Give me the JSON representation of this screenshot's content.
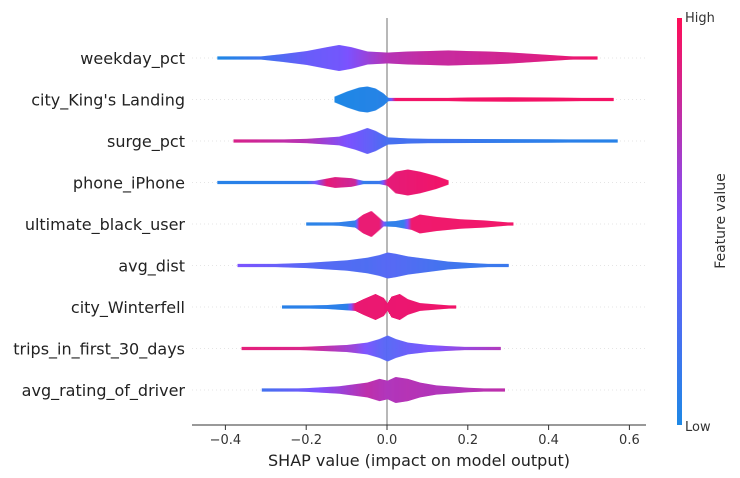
{
  "chart_data": {
    "type": "scatter",
    "style": "shap-violin-summary",
    "title": "",
    "xlabel": "SHAP value (impact on model output)",
    "ylabel": "",
    "xlim": [
      -0.47,
      0.62
    ],
    "xticks": [
      -0.4,
      -0.2,
      0.0,
      0.2,
      0.4,
      0.6
    ],
    "xtick_labels": [
      "−0.4",
      "−0.2",
      "0.0",
      "0.2",
      "0.4",
      "0.6"
    ],
    "grid": "horizontal dotted lines per feature",
    "colorbar": {
      "title": "Feature value",
      "high_label": "High",
      "low_label": "Low",
      "high_color": "#ff0d57",
      "low_color": "#1e88e5"
    },
    "features": [
      {
        "name": "weekday_pct",
        "min": -0.42,
        "max": 0.52,
        "density": [
          [
            -0.42,
            0.3
          ],
          [
            -0.32,
            0.6
          ],
          [
            -0.26,
            1.8
          ],
          [
            -0.2,
            3.2
          ],
          [
            -0.15,
            5
          ],
          [
            -0.12,
            6
          ],
          [
            -0.09,
            5
          ],
          [
            -0.05,
            3
          ],
          [
            0.0,
            2.5
          ],
          [
            0.05,
            3
          ],
          [
            0.1,
            3.2
          ],
          [
            0.15,
            3.5
          ],
          [
            0.2,
            3.2
          ],
          [
            0.25,
            3
          ],
          [
            0.3,
            2.6
          ],
          [
            0.35,
            2
          ],
          [
            0.4,
            1.4
          ],
          [
            0.45,
            0.8
          ],
          [
            0.5,
            0.5
          ],
          [
            0.52,
            0.3
          ]
        ],
        "color_stops": [
          [
            -0.42,
            0.0
          ],
          [
            -0.3,
            0.2
          ],
          [
            -0.2,
            0.4
          ],
          [
            -0.12,
            0.45
          ],
          [
            0.0,
            0.72
          ],
          [
            0.1,
            0.78
          ],
          [
            0.2,
            0.8
          ],
          [
            0.35,
            0.85
          ],
          [
            0.52,
            0.95
          ]
        ]
      },
      {
        "name": "city_King's Landing",
        "min": -0.13,
        "max": 0.56,
        "density": [
          [
            -0.13,
            3
          ],
          [
            -0.1,
            8
          ],
          [
            -0.07,
            12
          ],
          [
            -0.05,
            13
          ],
          [
            -0.03,
            11
          ],
          [
            -0.01,
            6
          ],
          [
            0.0,
            2
          ],
          [
            0.02,
            0
          ],
          [
            0.03,
            1
          ],
          [
            0.06,
            1
          ],
          [
            0.1,
            1.2
          ],
          [
            0.2,
            2
          ],
          [
            0.3,
            2.2
          ],
          [
            0.4,
            2
          ],
          [
            0.5,
            1.5
          ],
          [
            0.56,
            0.8
          ]
        ],
        "color_stops": [
          [
            -0.13,
            0.0
          ],
          [
            0.0,
            0.05
          ],
          [
            0.02,
            0.95
          ],
          [
            0.56,
            0.96
          ]
        ]
      },
      {
        "name": "surge_pct",
        "min": -0.38,
        "max": 0.57,
        "density": [
          [
            -0.38,
            0.3
          ],
          [
            -0.3,
            0.8
          ],
          [
            -0.2,
            1.5
          ],
          [
            -0.12,
            3
          ],
          [
            -0.08,
            6
          ],
          [
            -0.05,
            9
          ],
          [
            -0.03,
            7
          ],
          [
            0.0,
            2.5
          ],
          [
            0.05,
            1.8
          ],
          [
            0.1,
            1.5
          ],
          [
            0.2,
            1.4
          ],
          [
            0.3,
            1.3
          ],
          [
            0.4,
            1.2
          ],
          [
            0.5,
            1
          ],
          [
            0.57,
            0.5
          ]
        ],
        "color_stops": [
          [
            -0.38,
            0.85
          ],
          [
            -0.2,
            0.72
          ],
          [
            -0.1,
            0.5
          ],
          [
            -0.04,
            0.35
          ],
          [
            0.0,
            0.22
          ],
          [
            0.15,
            0.18
          ],
          [
            0.3,
            0.1
          ],
          [
            0.57,
            0.05
          ]
        ]
      },
      {
        "name": "phone_iPhone",
        "min": -0.42,
        "max": 0.15,
        "density": [
          [
            -0.42,
            0.4
          ],
          [
            -0.3,
            1
          ],
          [
            -0.18,
            1.5
          ],
          [
            -0.13,
            5
          ],
          [
            -0.09,
            4
          ],
          [
            -0.06,
            1.5
          ],
          [
            -0.02,
            1.5
          ],
          [
            0.0,
            3
          ],
          [
            0.02,
            10
          ],
          [
            0.05,
            12
          ],
          [
            0.08,
            10
          ],
          [
            0.1,
            8
          ],
          [
            0.12,
            6
          ],
          [
            0.15,
            2
          ]
        ],
        "color_stops": [
          [
            -0.42,
            0.05
          ],
          [
            -0.2,
            0.1
          ],
          [
            -0.15,
            0.9
          ],
          [
            -0.08,
            0.8
          ],
          [
            -0.06,
            0.1
          ],
          [
            -0.02,
            0.15
          ],
          [
            0.0,
            0.9
          ],
          [
            0.15,
            0.95
          ]
        ]
      },
      {
        "name": "ultimate_black_user",
        "min": -0.2,
        "max": 0.31,
        "density": [
          [
            -0.2,
            0.8
          ],
          [
            -0.12,
            1.5
          ],
          [
            -0.08,
            3
          ],
          [
            -0.06,
            8
          ],
          [
            -0.04,
            11
          ],
          [
            -0.03,
            8
          ],
          [
            -0.01,
            2
          ],
          [
            0.02,
            2.5
          ],
          [
            0.06,
            5
          ],
          [
            0.08,
            8
          ],
          [
            0.12,
            6
          ],
          [
            0.18,
            4
          ],
          [
            0.24,
            3
          ],
          [
            0.31,
            1
          ]
        ],
        "color_stops": [
          [
            -0.2,
            0.05
          ],
          [
            -0.08,
            0.1
          ],
          [
            -0.07,
            0.92
          ],
          [
            -0.02,
            0.92
          ],
          [
            0.0,
            0.08
          ],
          [
            0.04,
            0.1
          ],
          [
            0.06,
            0.94
          ],
          [
            0.31,
            0.95
          ]
        ]
      },
      {
        "name": "avg_dist",
        "min": -0.37,
        "max": 0.3,
        "density": [
          [
            -0.37,
            0.3
          ],
          [
            -0.3,
            1
          ],
          [
            -0.2,
            2
          ],
          [
            -0.1,
            4
          ],
          [
            -0.05,
            6
          ],
          [
            -0.02,
            8
          ],
          [
            0.0,
            10
          ],
          [
            0.02,
            9
          ],
          [
            0.05,
            7
          ],
          [
            0.1,
            5
          ],
          [
            0.15,
            3
          ],
          [
            0.2,
            2
          ],
          [
            0.25,
            1.2
          ],
          [
            0.3,
            0.4
          ]
        ],
        "color_stops": [
          [
            -0.37,
            0.5
          ],
          [
            -0.2,
            0.3
          ],
          [
            -0.05,
            0.25
          ],
          [
            0.0,
            0.3
          ],
          [
            0.1,
            0.22
          ],
          [
            0.2,
            0.15
          ],
          [
            0.3,
            0.15
          ]
        ]
      },
      {
        "name": "city_Winterfell",
        "min": -0.26,
        "max": 0.17,
        "density": [
          [
            -0.26,
            0.8
          ],
          [
            -0.15,
            1.5
          ],
          [
            -0.08,
            3
          ],
          [
            -0.06,
            6
          ],
          [
            -0.03,
            10
          ],
          [
            -0.01,
            7
          ],
          [
            0.0,
            3
          ],
          [
            0.01,
            8
          ],
          [
            0.03,
            10
          ],
          [
            0.05,
            6
          ],
          [
            0.08,
            3
          ],
          [
            0.12,
            2
          ],
          [
            0.17,
            0.8
          ]
        ],
        "color_stops": [
          [
            -0.26,
            0.06
          ],
          [
            -0.1,
            0.08
          ],
          [
            -0.08,
            0.92
          ],
          [
            0.1,
            0.93
          ],
          [
            0.17,
            0.95
          ]
        ]
      },
      {
        "name": "trips_in_first_30_days",
        "min": -0.36,
        "max": 0.28,
        "density": [
          [
            -0.36,
            0.3
          ],
          [
            -0.28,
            0.8
          ],
          [
            -0.2,
            1.5
          ],
          [
            -0.1,
            3
          ],
          [
            -0.05,
            5
          ],
          [
            -0.02,
            8
          ],
          [
            0.0,
            11
          ],
          [
            0.02,
            8
          ],
          [
            0.05,
            5
          ],
          [
            0.1,
            3
          ],
          [
            0.15,
            2
          ],
          [
            0.2,
            1.2
          ],
          [
            0.28,
            0.5
          ]
        ],
        "color_stops": [
          [
            -0.36,
            0.9
          ],
          [
            -0.2,
            0.85
          ],
          [
            -0.08,
            0.6
          ],
          [
            -0.02,
            0.35
          ],
          [
            0.0,
            0.3
          ],
          [
            0.05,
            0.4
          ],
          [
            0.15,
            0.55
          ],
          [
            0.28,
            0.7
          ]
        ]
      },
      {
        "name": "avg_rating_of_driver",
        "min": -0.31,
        "max": 0.29,
        "density": [
          [
            -0.31,
            0.3
          ],
          [
            -0.2,
            1
          ],
          [
            -0.12,
            2
          ],
          [
            -0.05,
            4
          ],
          [
            -0.02,
            6
          ],
          [
            0.0,
            5
          ],
          [
            0.02,
            7
          ],
          [
            0.05,
            6
          ],
          [
            0.08,
            4
          ],
          [
            0.12,
            2.5
          ],
          [
            0.2,
            1.2
          ],
          [
            0.29,
            0.4
          ]
        ],
        "color_stops": [
          [
            -0.31,
            0.2
          ],
          [
            -0.15,
            0.55
          ],
          [
            -0.05,
            0.75
          ],
          [
            0.0,
            0.7
          ],
          [
            0.05,
            0.72
          ],
          [
            0.15,
            0.7
          ],
          [
            0.29,
            0.75
          ]
        ]
      }
    ]
  }
}
